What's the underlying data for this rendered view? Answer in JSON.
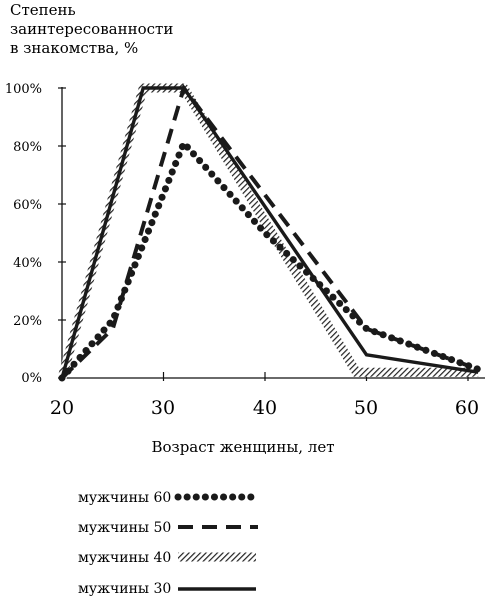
{
  "chart_data": {
    "type": "line",
    "ylabel_lines": [
      "Степень",
      "заинтересованности",
      "в знакомства, %"
    ],
    "xlabel": "Возраст женщины, лет",
    "xlim": [
      20,
      61
    ],
    "ylim": [
      0,
      100
    ],
    "x_ticks": [
      "20",
      "30",
      "40",
      "50",
      "60"
    ],
    "y_ticks": [
      "0%",
      "20%",
      "40%",
      "60%",
      "80%",
      "100%"
    ],
    "grid": false,
    "legend_position": "bottom",
    "series": [
      {
        "name": "мужчины 60",
        "style": "dotted",
        "x": [
          20,
          25,
          32,
          40,
          50,
          61
        ],
        "y": [
          0,
          20,
          81,
          50,
          17,
          3
        ]
      },
      {
        "name": "мужчины 50",
        "style": "dashed",
        "x": [
          20,
          25,
          32,
          50,
          61
        ],
        "y": [
          0,
          17,
          100,
          17,
          3
        ]
      },
      {
        "name": "мужчины 40",
        "style": "hatched",
        "x": [
          20,
          28,
          32,
          49,
          61
        ],
        "y": [
          0,
          100,
          100,
          2,
          2
        ]
      },
      {
        "name": "мужчины 30",
        "style": "solid",
        "x": [
          20,
          28,
          32,
          50,
          61
        ],
        "y": [
          0,
          100,
          100,
          8,
          2
        ]
      }
    ]
  }
}
